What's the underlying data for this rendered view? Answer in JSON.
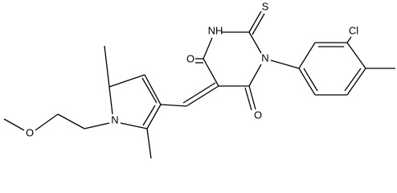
{
  "nodes": [
    {
      "label": "O"
    },
    {
      "label": "NH"
    },
    {
      "label": "S"
    },
    {
      "label": "N"
    },
    {
      "label": "Cl"
    },
    {
      "label": "O"
    },
    {
      "label": "N"
    },
    {
      "label": "O"
    }
  ]
}
